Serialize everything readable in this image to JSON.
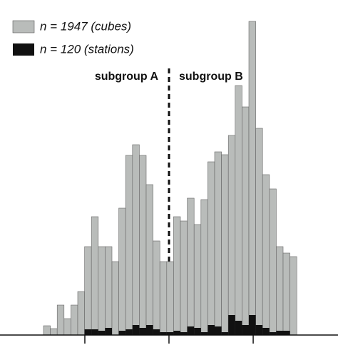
{
  "chart_data": {
    "type": "histogram",
    "annotations": [
      "subgroup A",
      "subgroup B"
    ],
    "bins": [
      0,
      1,
      2,
      3,
      4,
      5,
      6,
      7,
      8,
      9,
      10,
      11,
      12,
      13,
      14,
      15,
      16,
      17,
      18,
      19,
      20,
      21,
      22,
      23,
      24,
      25,
      26,
      27,
      28,
      29,
      30,
      31,
      32,
      33,
      34,
      35,
      36,
      37
    ],
    "series": [
      {
        "name": "n = 1947 (cubes)",
        "color": "#b9bcba",
        "values": [
          13,
          9,
          42,
          23,
          42,
          61,
          124,
          166,
          124,
          124,
          103,
          178,
          252,
          267,
          252,
          211,
          132,
          103,
          103,
          166,
          160,
          192,
          155,
          190,
          243,
          257,
          253,
          280,
          350,
          320,
          440,
          290,
          225,
          205,
          124,
          115,
          110
        ]
      },
      {
        "name": "n = 120 (stations)",
        "color": "#111111",
        "values": [
          0,
          0,
          0,
          0,
          0,
          0,
          8,
          8,
          6,
          10,
          0,
          6,
          8,
          14,
          10,
          14,
          8,
          4,
          4,
          6,
          4,
          12,
          10,
          4,
          14,
          12,
          4,
          28,
          20,
          14,
          28,
          14,
          10,
          4,
          6,
          6,
          0
        ]
      }
    ],
    "xlim": [
      -6.354,
      43.02
    ],
    "xticks": [
      6.04,
      18.33,
      30.63
    ],
    "ylim": [
      0,
      450
    ]
  }
}
